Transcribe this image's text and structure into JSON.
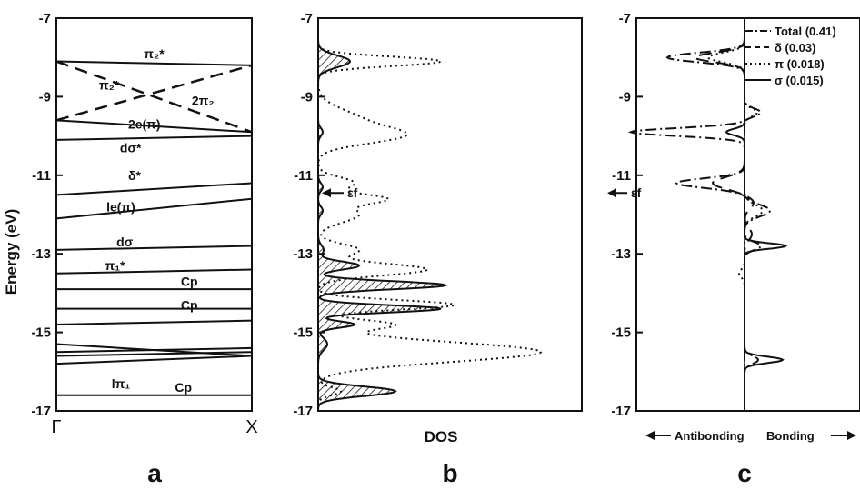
{
  "chart_data": [
    {
      "type": "line",
      "panel_label": "a",
      "ylabel": "Energy (eV)",
      "ylim": [
        -17,
        -7
      ],
      "yticks": [
        "-7",
        "-9",
        "-11",
        "-13",
        "-15",
        "-17"
      ],
      "xticks": [
        "Γ",
        "X"
      ],
      "bands": [
        {
          "style": "solid",
          "y": [
            -8.1,
            -8.2
          ]
        },
        {
          "style": "dashed",
          "y": [
            -8.1,
            -9.9
          ]
        },
        {
          "style": "dashed",
          "y": [
            -9.6,
            -8.2
          ]
        },
        {
          "style": "solid",
          "y": [
            -9.6,
            -9.9
          ]
        },
        {
          "style": "solid",
          "y": [
            -10.1,
            -10.0
          ]
        },
        {
          "style": "solid",
          "y": [
            -11.5,
            -11.2
          ]
        },
        {
          "style": "solid",
          "y": [
            -12.1,
            -11.6
          ]
        },
        {
          "style": "solid",
          "y": [
            -12.9,
            -12.8
          ]
        },
        {
          "style": "solid",
          "y": [
            -13.5,
            -13.4
          ]
        },
        {
          "style": "solid",
          "y": [
            -13.9,
            -13.9
          ]
        },
        {
          "style": "solid",
          "y": [
            -14.4,
            -14.4
          ]
        },
        {
          "style": "solid",
          "y": [
            -14.8,
            -14.7
          ]
        },
        {
          "style": "solid",
          "y": [
            -15.3,
            -15.6
          ]
        },
        {
          "style": "solid",
          "y": [
            -15.5,
            -15.4
          ]
        },
        {
          "style": "solid",
          "y": [
            -15.6,
            -15.5
          ]
        },
        {
          "style": "solid",
          "y": [
            -15.8,
            -15.6
          ]
        },
        {
          "style": "solid",
          "y": [
            -16.6,
            -16.6
          ]
        }
      ],
      "annotations": [
        {
          "text": "π₂*",
          "x": 0.5,
          "y": -7.9
        },
        {
          "text": "π₂*",
          "x": 0.27,
          "y": -8.7
        },
        {
          "text": "2π₂",
          "x": 0.75,
          "y": -9.1
        },
        {
          "text": "2e(π)",
          "x": 0.45,
          "y": -9.7
        },
        {
          "text": "dσ*",
          "x": 0.38,
          "y": -10.3
        },
        {
          "text": "δ*",
          "x": 0.4,
          "y": -11.0
        },
        {
          "text": "le(π)",
          "x": 0.33,
          "y": -11.8
        },
        {
          "text": "dσ",
          "x": 0.35,
          "y": -12.7
        },
        {
          "text": "π₁*",
          "x": 0.3,
          "y": -13.3
        },
        {
          "text": "Cp",
          "x": 0.68,
          "y": -13.7
        },
        {
          "text": "Cp",
          "x": 0.68,
          "y": -14.3
        },
        {
          "text": "lπ₁",
          "x": 0.33,
          "y": -16.3
        },
        {
          "text": "Cp",
          "x": 0.65,
          "y": -16.4
        }
      ]
    },
    {
      "type": "area",
      "panel_label": "b",
      "xlabel": "DOS",
      "ylim": [
        -17,
        -7
      ],
      "yticks": [
        "-7",
        "-9",
        "-11",
        "-13",
        "-15",
        "-17"
      ],
      "fermi_label": "εf",
      "fermi_level": -11.45,
      "series": [
        {
          "style": "dotted",
          "peaks": [
            [
              -8.1,
              135,
              0.12
            ],
            [
              -9.6,
              45,
              0.28
            ],
            [
              -10.0,
              80,
              0.2
            ],
            [
              -11.2,
              40,
              0.15
            ],
            [
              -11.6,
              70,
              0.12
            ],
            [
              -12.0,
              45,
              0.2
            ],
            [
              -12.9,
              45,
              0.15
            ],
            [
              -13.4,
              120,
              0.15
            ],
            [
              -14.3,
              150,
              0.12
            ],
            [
              -14.8,
              80,
              0.12
            ],
            [
              -15.5,
              245,
              0.25
            ],
            [
              -16.5,
              25,
              0.1
            ]
          ]
        },
        {
          "style": "hatched",
          "peaks": [
            [
              -8.1,
              35,
              0.15
            ],
            [
              -9.9,
              5,
              0.1
            ],
            [
              -11.3,
              5,
              0.1
            ],
            [
              -11.9,
              5,
              0.1
            ],
            [
              -12.9,
              6,
              0.12
            ],
            [
              -13.3,
              45,
              0.1
            ],
            [
              -13.8,
              140,
              0.1
            ],
            [
              -14.4,
              135,
              0.09
            ],
            [
              -14.8,
              40,
              0.08
            ],
            [
              -15.3,
              10,
              0.15
            ],
            [
              -16.5,
              85,
              0.12
            ]
          ]
        }
      ]
    },
    {
      "type": "line",
      "panel_label": "c",
      "ylim": [
        -17,
        -7
      ],
      "yticks": [
        "-7",
        "-9",
        "-11",
        "-13",
        "-15",
        "-17"
      ],
      "fermi_label": "εf",
      "fermi_level": -11.45,
      "x_left_label": "Antibonding",
      "x_right_label": "Bonding",
      "legend_position": "top-right",
      "series": [
        {
          "name": "Total (0.41)",
          "style": "dashdot",
          "peaks": [
            [
              -8.0,
              -85,
              0.12
            ],
            [
              -9.4,
              18,
              0.1
            ],
            [
              -9.9,
              -125,
              0.1
            ],
            [
              -11.2,
              -75,
              0.12
            ],
            [
              -11.9,
              28,
              0.15
            ],
            [
              -12.8,
              18,
              0.1
            ],
            [
              -15.7,
              15,
              0.1
            ]
          ]
        },
        {
          "name": "δ (0.03)",
          "style": "dashed",
          "peaks": [
            [
              -8.0,
              -55,
              0.12
            ],
            [
              -11.2,
              -35,
              0.15
            ],
            [
              -11.7,
              10,
              0.15
            ],
            [
              -12.5,
              8,
              0.15
            ]
          ]
        },
        {
          "name": "π (0.018)",
          "style": "dotted",
          "peaks": [
            [
              -8.0,
              -40,
              0.12
            ],
            [
              -9.4,
              14,
              0.1
            ],
            [
              -11.9,
              20,
              0.15
            ],
            [
              -13.5,
              -6,
              0.1
            ]
          ]
        },
        {
          "name": "σ (0.015)",
          "style": "solid",
          "peaks": [
            [
              -9.9,
              -20,
              0.08
            ],
            [
              -12.8,
              45,
              0.07
            ],
            [
              -15.7,
              42,
              0.08
            ]
          ]
        }
      ]
    }
  ]
}
